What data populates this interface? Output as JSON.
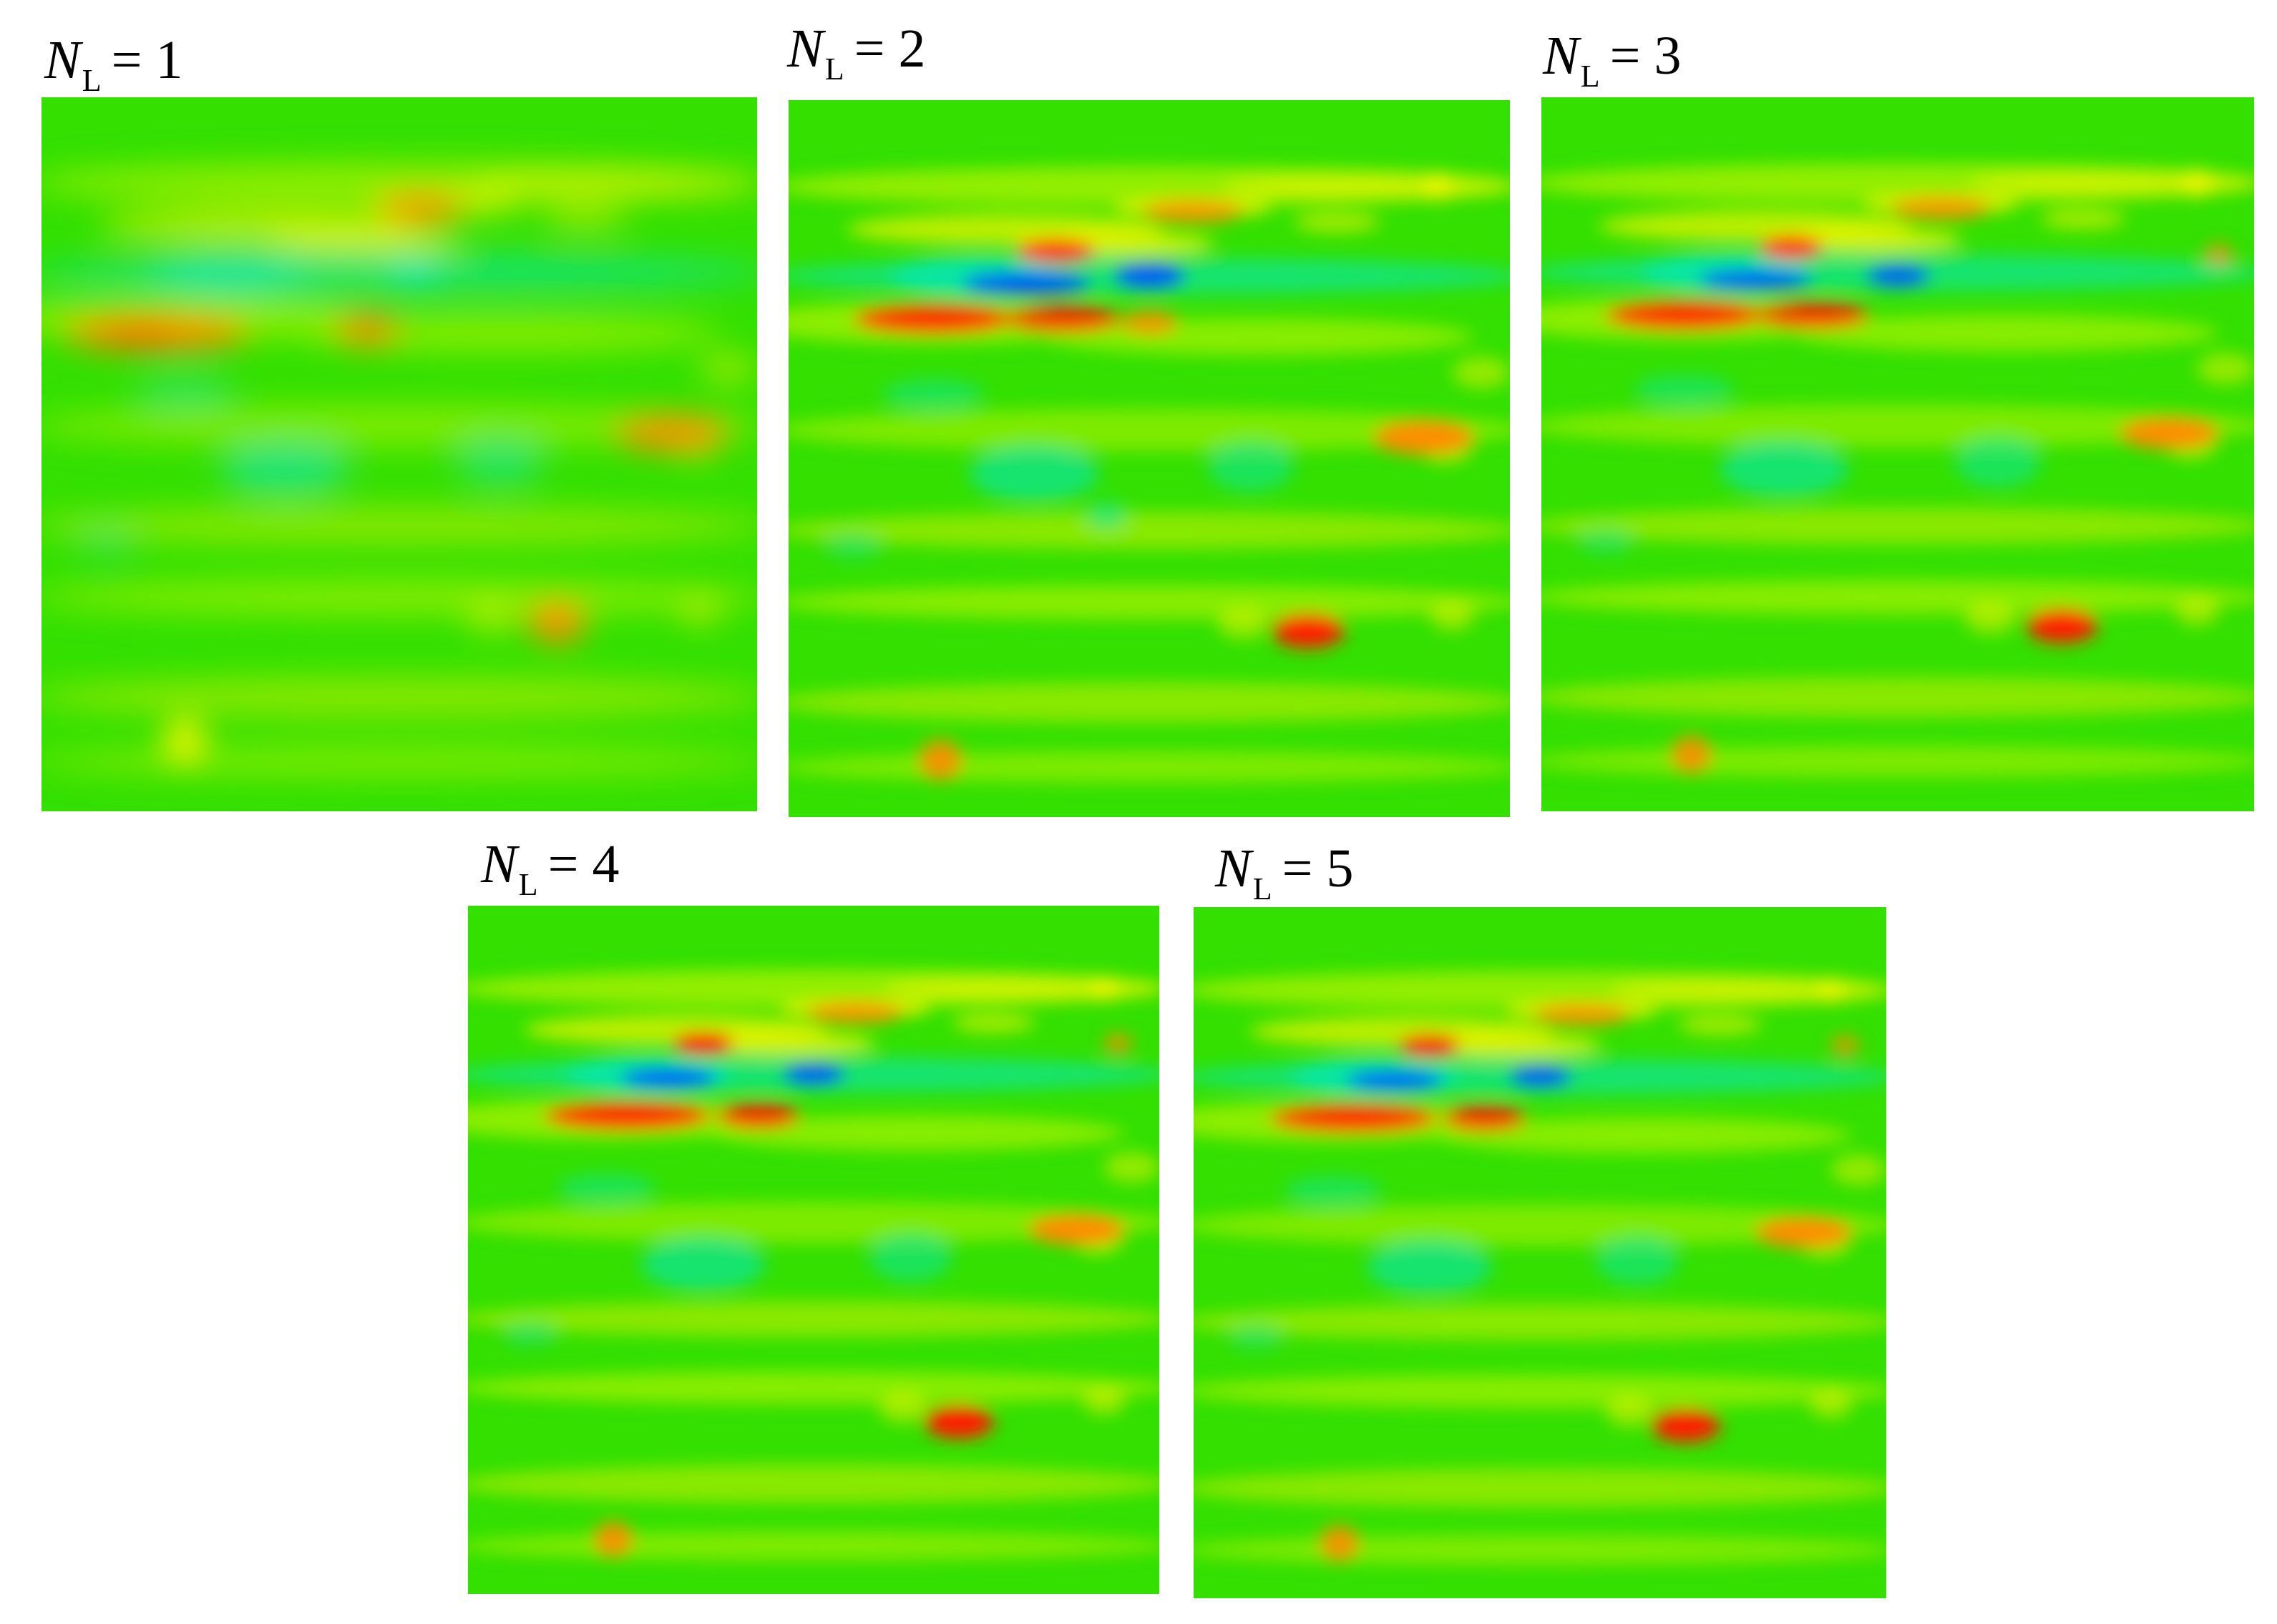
{
  "panels": [
    {
      "id": "p1",
      "symbol": "N",
      "subscript": "L",
      "equals": "=",
      "value": "1"
    },
    {
      "id": "p2",
      "symbol": "N",
      "subscript": "L",
      "equals": "=",
      "value": "2"
    },
    {
      "id": "p3",
      "symbol": "N",
      "subscript": "L",
      "equals": "=",
      "value": "3"
    },
    {
      "id": "p4",
      "symbol": "N",
      "subscript": "L",
      "equals": "=",
      "value": "4"
    },
    {
      "id": "p5",
      "symbol": "N",
      "subscript": "L",
      "equals": "=",
      "value": "5"
    }
  ],
  "colors": {
    "background_field": "#33e000",
    "light_green": "#9cf000",
    "yellow": "#f5f500",
    "orange": "#ff8c00",
    "red": "#ff1a00",
    "cyan": "#00e8c8",
    "blue": "#0050ff"
  }
}
